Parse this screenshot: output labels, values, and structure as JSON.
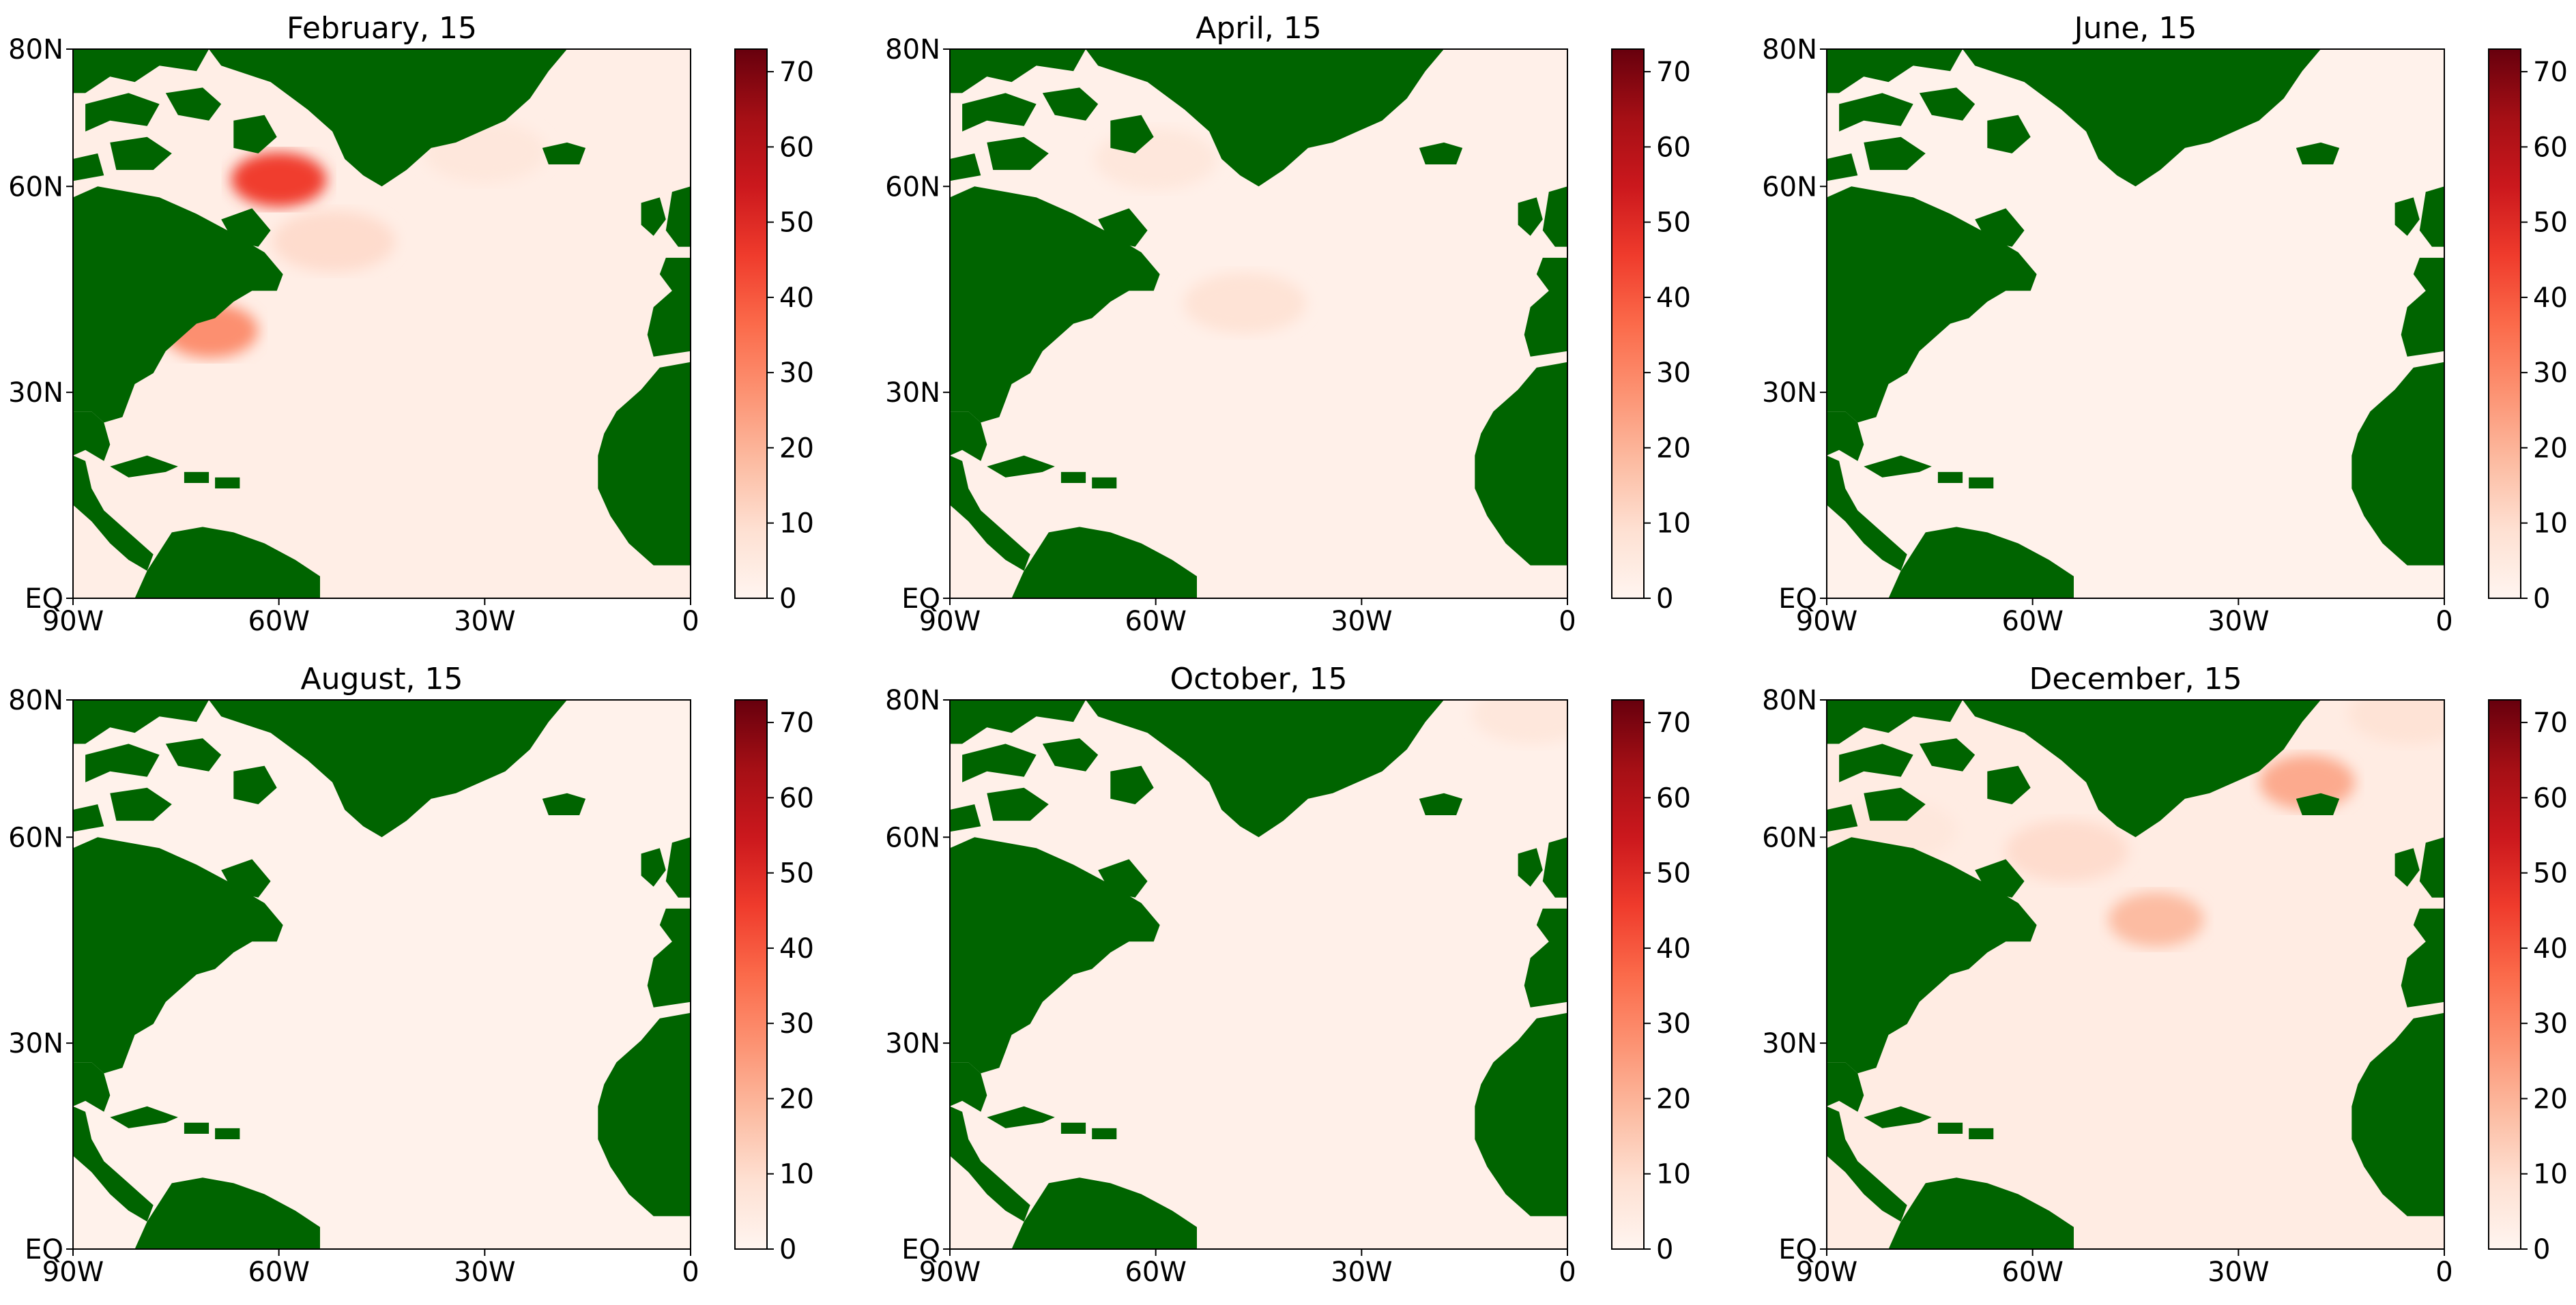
{
  "figure": {
    "panel_count": 6
  },
  "colors": {
    "land": "#006400",
    "ocean_base": "#fff5f0",
    "colormap_stops": [
      "#fff5f0",
      "#fee0d2",
      "#fcbba1",
      "#fc9272",
      "#fb6a4a",
      "#ef3b2c",
      "#cb181d",
      "#a50f15",
      "#67000d"
    ]
  },
  "colorbar": {
    "ticks": [
      "0",
      "10",
      "20",
      "30",
      "40",
      "50",
      "60",
      "70"
    ],
    "range": [
      0,
      73
    ]
  },
  "axes": {
    "x_ticks": [
      "90W",
      "60W",
      "30W",
      "0"
    ],
    "y_ticks": [
      "EQ",
      "30N",
      "60N",
      "80N"
    ],
    "x_range_deg": [
      -90,
      0
    ],
    "y_range_deg": [
      0,
      80
    ]
  },
  "chart_data": [
    {
      "type": "heatmap",
      "title": "February, 15",
      "xlim": [
        -90,
        0
      ],
      "ylim": [
        0,
        80
      ],
      "clim": [
        0,
        73
      ],
      "background_value": 3,
      "hotspots": [
        {
          "lon": -60,
          "lat": 61,
          "value": 45
        },
        {
          "lon": -70,
          "lat": 39,
          "value": 28
        },
        {
          "lon": -52,
          "lat": 52,
          "value": 10
        },
        {
          "lon": -30,
          "lat": 65,
          "value": 6
        }
      ]
    },
    {
      "type": "heatmap",
      "title": "April, 15",
      "xlim": [
        -90,
        0
      ],
      "ylim": [
        0,
        80
      ],
      "clim": [
        0,
        73
      ],
      "background_value": 2,
      "hotspots": [
        {
          "lon": -47,
          "lat": 43,
          "value": 8
        },
        {
          "lon": -60,
          "lat": 64,
          "value": 6
        }
      ]
    },
    {
      "type": "heatmap",
      "title": "June, 15",
      "xlim": [
        -90,
        0
      ],
      "ylim": [
        0,
        80
      ],
      "clim": [
        0,
        73
      ],
      "background_value": 1.5,
      "hotspots": []
    },
    {
      "type": "heatmap",
      "title": "August, 15",
      "xlim": [
        -90,
        0
      ],
      "ylim": [
        0,
        80
      ],
      "clim": [
        0,
        73
      ],
      "background_value": 1.5,
      "hotspots": []
    },
    {
      "type": "heatmap",
      "title": "October, 15",
      "xlim": [
        -90,
        0
      ],
      "ylim": [
        0,
        80
      ],
      "clim": [
        0,
        73
      ],
      "background_value": 2,
      "hotspots": [
        {
          "lon": -5,
          "lat": 78,
          "value": 6
        }
      ]
    },
    {
      "type": "heatmap",
      "title": "December, 15",
      "xlim": [
        -90,
        0
      ],
      "ylim": [
        0,
        80
      ],
      "clim": [
        0,
        73
      ],
      "background_value": 4,
      "hotspots": [
        {
          "lon": -42,
          "lat": 48,
          "value": 18
        },
        {
          "lon": -20,
          "lat": 68,
          "value": 22
        },
        {
          "lon": -55,
          "lat": 58,
          "value": 10
        },
        {
          "lon": -80,
          "lat": 61,
          "value": 6
        },
        {
          "lon": -5,
          "lat": 78,
          "value": 8
        }
      ]
    }
  ]
}
